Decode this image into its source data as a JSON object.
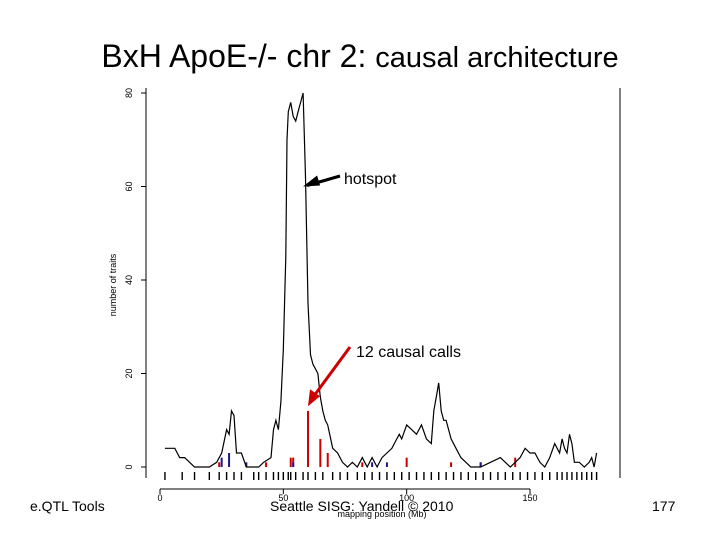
{
  "slide": {
    "title_main": "BxH ApoE-/- chr 2:",
    "title_sub": "causal architecture",
    "footer_left": "e.QTL Tools",
    "footer_center": "Seattle SISG: Yandell © 2010",
    "footer_right": "177"
  },
  "chart_data": {
    "type": "line",
    "xlabel": "mapping position (Mb)",
    "ylabel": "number of traits",
    "xlim": [
      0,
      180
    ],
    "ylim": [
      0,
      80
    ],
    "xticks": [
      0,
      50,
      100,
      150
    ],
    "yticks": [
      0,
      20,
      40,
      60,
      80
    ],
    "grid": false,
    "colors": {
      "line": "#000000",
      "causal": "#cc0000",
      "blue": "#1a1a8c"
    },
    "series": [
      {
        "points": [
          [
            2,
            4
          ],
          [
            6,
            4
          ],
          [
            8,
            2
          ],
          [
            10,
            2
          ],
          [
            12,
            1
          ],
          [
            14,
            0
          ],
          [
            20,
            0
          ],
          [
            23,
            1
          ],
          [
            25,
            3
          ],
          [
            27,
            8
          ],
          [
            28,
            7
          ],
          [
            29,
            12
          ],
          [
            30,
            11
          ],
          [
            31,
            3
          ],
          [
            33,
            3
          ],
          [
            35,
            0
          ],
          [
            38,
            0
          ],
          [
            40,
            0
          ],
          [
            42,
            1
          ],
          [
            45,
            2
          ],
          [
            46,
            8
          ],
          [
            47,
            10
          ],
          [
            48,
            8
          ],
          [
            49,
            14
          ],
          [
            50,
            25
          ],
          [
            51,
            45
          ],
          [
            51.5,
            70
          ],
          [
            52,
            76
          ],
          [
            53,
            78
          ],
          [
            54,
            75
          ],
          [
            55,
            74
          ],
          [
            56,
            76
          ],
          [
            57,
            78
          ],
          [
            58,
            80
          ],
          [
            59,
            62
          ],
          [
            60,
            35
          ],
          [
            61,
            24
          ],
          [
            62,
            22
          ],
          [
            63,
            21
          ],
          [
            64,
            20
          ],
          [
            65,
            15
          ],
          [
            66,
            12
          ],
          [
            67,
            10
          ],
          [
            68,
            9
          ],
          [
            70,
            4
          ],
          [
            72,
            3
          ],
          [
            74,
            1
          ],
          [
            76,
            0
          ],
          [
            78,
            1
          ],
          [
            80,
            0
          ],
          [
            82,
            2
          ],
          [
            84,
            0
          ],
          [
            86,
            2
          ],
          [
            88,
            0
          ],
          [
            90,
            2
          ],
          [
            92,
            3
          ],
          [
            94,
            4
          ],
          [
            96,
            6
          ],
          [
            97,
            7
          ],
          [
            98,
            6
          ],
          [
            100,
            9
          ],
          [
            102,
            8
          ],
          [
            104,
            7
          ],
          [
            106,
            9
          ],
          [
            108,
            6
          ],
          [
            110,
            5
          ],
          [
            111,
            12
          ],
          [
            112,
            15
          ],
          [
            113,
            18
          ],
          [
            114,
            12
          ],
          [
            115,
            10
          ],
          [
            116,
            10
          ],
          [
            118,
            6
          ],
          [
            120,
            4
          ],
          [
            122,
            2
          ],
          [
            124,
            1
          ],
          [
            126,
            0
          ],
          [
            130,
            0
          ],
          [
            134,
            1
          ],
          [
            138,
            2
          ],
          [
            140,
            1
          ],
          [
            142,
            0
          ],
          [
            144,
            1
          ],
          [
            146,
            2
          ],
          [
            148,
            4
          ],
          [
            150,
            3
          ],
          [
            152,
            3
          ],
          [
            154,
            1
          ],
          [
            156,
            0
          ],
          [
            158,
            2
          ],
          [
            160,
            5
          ],
          [
            162,
            3
          ],
          [
            163,
            6
          ],
          [
            164,
            4
          ],
          [
            165,
            3
          ],
          [
            166,
            7
          ],
          [
            167,
            5
          ],
          [
            168,
            1
          ],
          [
            170,
            1
          ],
          [
            172,
            0
          ],
          [
            174,
            1
          ],
          [
            175,
            2
          ],
          [
            176,
            0
          ],
          [
            177,
            3
          ]
        ]
      }
    ],
    "causal_calls": [
      [
        24,
        1
      ],
      [
        43,
        1
      ],
      [
        53,
        2
      ],
      [
        54,
        2
      ],
      [
        60,
        12
      ],
      [
        65,
        6
      ],
      [
        68,
        3
      ],
      [
        82,
        1
      ],
      [
        100,
        2
      ],
      [
        118,
        1
      ],
      [
        130,
        1
      ],
      [
        144,
        2
      ]
    ],
    "blue_marks": [
      [
        25,
        2
      ],
      [
        28,
        3
      ],
      [
        35,
        1
      ],
      [
        54,
        1
      ],
      [
        86,
        1
      ],
      [
        92,
        1
      ],
      [
        130,
        1
      ]
    ],
    "rug_positions": [
      2,
      9,
      14,
      20,
      24,
      27,
      30,
      33,
      38,
      40,
      43,
      46,
      48,
      50,
      52,
      53,
      55,
      58,
      60,
      63,
      66,
      70,
      73,
      76,
      80,
      83,
      86,
      89,
      92,
      95,
      98,
      101,
      104,
      107,
      110,
      113,
      116,
      119,
      122,
      125,
      128,
      131,
      134,
      137,
      140,
      143,
      146,
      149,
      152,
      155,
      158,
      161,
      163,
      165,
      167,
      169,
      171,
      173,
      175,
      177
    ],
    "annotations": [
      {
        "text": "hotspot",
        "x": 58,
        "y": 60,
        "color": "#000000"
      },
      {
        "text": "12 causal calls",
        "x": 60,
        "y": 13,
        "color": "#cc0000"
      }
    ]
  }
}
